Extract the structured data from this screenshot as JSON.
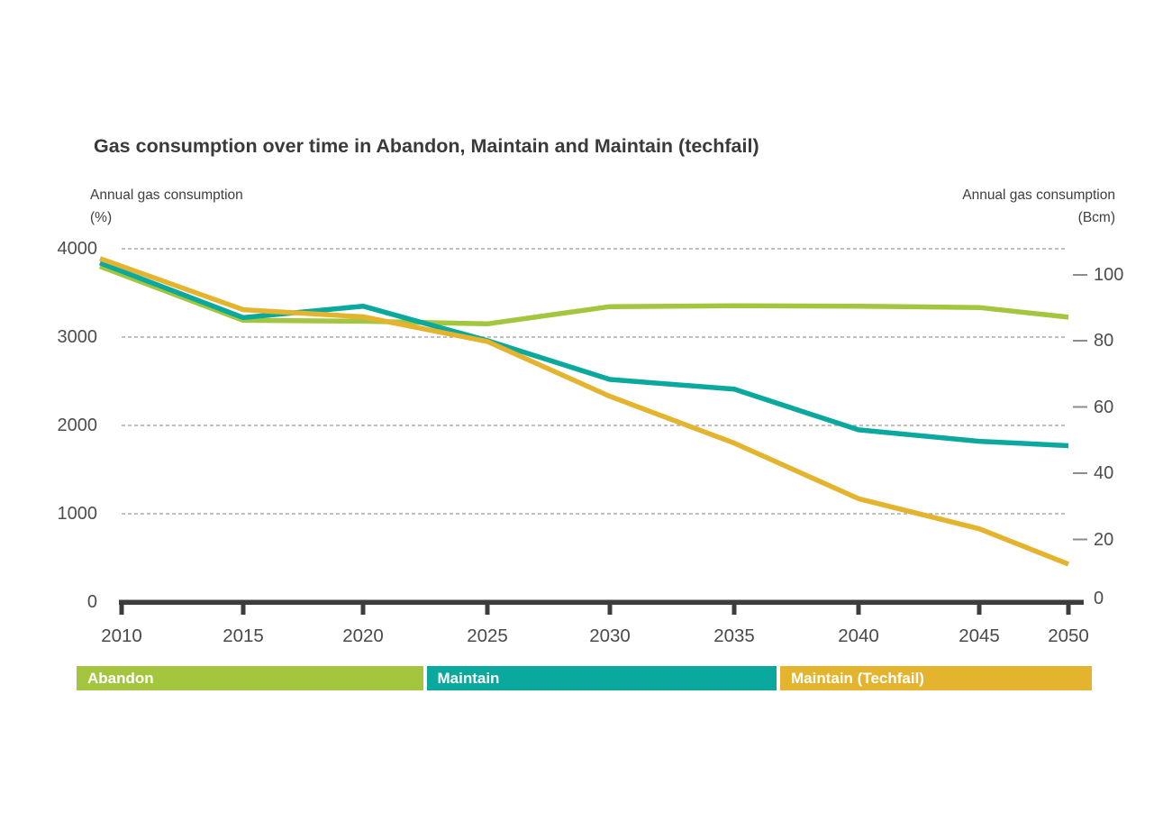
{
  "chart": {
    "title": "Gas consumption over time in Abandon, Maintain and Maintain (techfail)",
    "left_axis": {
      "label_line1": "Annual gas consumption",
      "label_line2": "(%)"
    },
    "right_axis": {
      "label_line1": "Annual gas consumption",
      "label_line2": "(Bcm)"
    }
  },
  "chart_data": {
    "type": "line",
    "title": "Gas consumption over time in Abandon, Maintain and Maintain (techfail)",
    "categories": [
      2010,
      2015,
      2020,
      2025,
      2030,
      2035,
      2040,
      2045,
      2050
    ],
    "series": [
      {
        "name": "Abandon",
        "color": "#a4c63e",
        "values": [
          3800,
          3190,
          3180,
          3150,
          3345,
          3355,
          3350,
          3335,
          3225
        ]
      },
      {
        "name": "Maintain",
        "color": "#0aa89d",
        "values": [
          3840,
          3220,
          3350,
          2960,
          2520,
          2410,
          1950,
          1820,
          1770
        ]
      },
      {
        "name": "Maintain (Techfail)",
        "color": "#e5b42e",
        "values": [
          3890,
          3310,
          3230,
          2950,
          2330,
          1800,
          1170,
          830,
          430
        ]
      }
    ],
    "left_axis": {
      "label": "Annual gas consumption (%)",
      "ticks": [
        0,
        1000,
        2000,
        3000,
        4000
      ],
      "ylim": [
        0,
        4000
      ]
    },
    "right_axis": {
      "label": "Annual gas consumption (Bcm)",
      "ticks": [
        0,
        20,
        40,
        60,
        80,
        100
      ],
      "ylim_approx": [
        0,
        109
      ]
    },
    "x_axis": {
      "ticks": [
        2010,
        2015,
        2020,
        2025,
        2030,
        2035,
        2040,
        2045,
        2050
      ]
    },
    "grid": "horizontal-dashed",
    "legend_position": "bottom-bar",
    "legend": [
      "Abandon",
      "Maintain",
      "Maintain (Techfail)"
    ]
  }
}
